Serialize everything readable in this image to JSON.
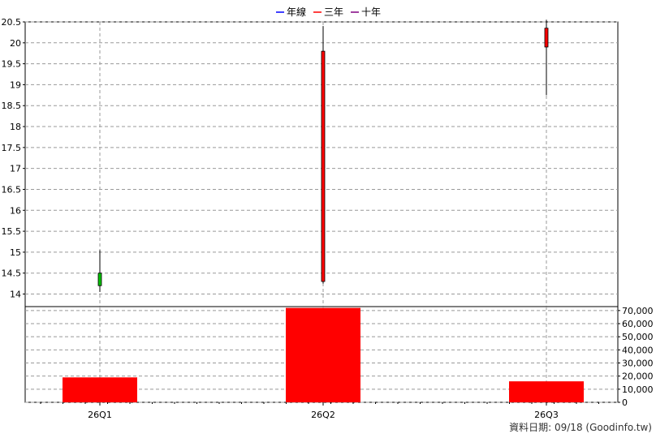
{
  "legend": [
    {
      "label": "年線",
      "color": "#0000ff"
    },
    {
      "label": "三年",
      "color": "#ff0000"
    },
    {
      "label": "十年",
      "color": "#800080"
    }
  ],
  "footer": "資料日期: 09/18  (Goodinfo.tw)",
  "chart_data": [
    {
      "type": "candlestick",
      "categories": [
        "26Q1",
        "26Q2",
        "26Q3"
      ],
      "ylim": [
        13.7,
        20.5
      ],
      "yticks": [
        "14",
        "14.5",
        "15",
        "15.5",
        "16",
        "16.5",
        "17",
        "17.5",
        "18",
        "18.5",
        "19",
        "19.5",
        "20",
        "20.5"
      ],
      "candles": [
        {
          "x": "26Q1",
          "open": 14.2,
          "close": 14.5,
          "high": 15.05,
          "low": 14.05,
          "color": "#00c000"
        },
        {
          "x": "26Q2",
          "open": 19.8,
          "close": 14.3,
          "high": 20.4,
          "low": 14.25,
          "color": "#ff0000"
        },
        {
          "x": "26Q3",
          "open": 20.35,
          "close": 19.9,
          "high": 20.55,
          "low": 18.75,
          "color": "#ff0000"
        }
      ],
      "grid": true
    },
    {
      "type": "bar",
      "categories": [
        "26Q1",
        "26Q2",
        "26Q3"
      ],
      "values": [
        19000,
        72000,
        16000
      ],
      "color": "#ff0000",
      "ylim": [
        0,
        73000
      ],
      "yticks": [
        "0",
        "10,000",
        "20,000",
        "30,000",
        "40,000",
        "50,000",
        "60,000",
        "70,000"
      ],
      "axis_position": "right",
      "grid": true
    }
  ]
}
